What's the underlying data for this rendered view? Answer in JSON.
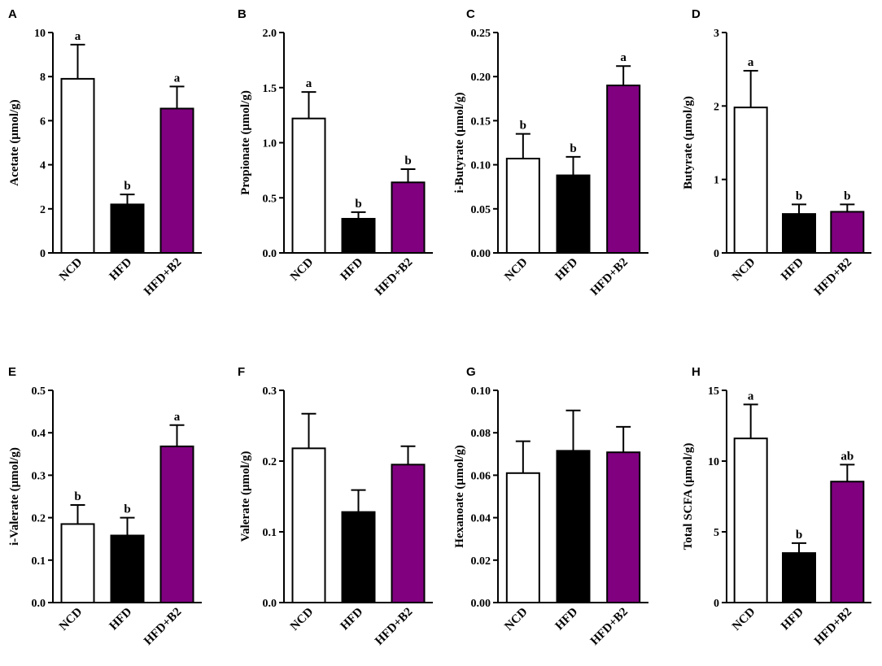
{
  "colors": {
    "NCD": "#ffffff",
    "HFD": "#000000",
    "HFD+B2": "#800080",
    "stroke": "#000000"
  },
  "chart_data": [
    {
      "panel": "A",
      "type": "bar",
      "categories": [
        "NCD",
        "HFD",
        "HFD+B2"
      ],
      "values": [
        7.9,
        2.2,
        6.55
      ],
      "errors": [
        1.55,
        0.45,
        1.0
      ],
      "significance": [
        "a",
        "b",
        "a"
      ],
      "ylabel": "Acetate (μmol/g)",
      "ylim": [
        0,
        10
      ],
      "yticks": [
        "0",
        "2",
        "4",
        "6",
        "8",
        "10"
      ]
    },
    {
      "panel": "B",
      "type": "bar",
      "categories": [
        "NCD",
        "HFD",
        "HFD+B2"
      ],
      "values": [
        1.22,
        0.31,
        0.64
      ],
      "errors": [
        0.24,
        0.06,
        0.12
      ],
      "significance": [
        "a",
        "b",
        "b"
      ],
      "ylabel": "Propionate (μmol/g)",
      "ylim": [
        0,
        2
      ],
      "yticks": [
        "0.0",
        "0.5",
        "1.0",
        "1.5",
        "2.0"
      ]
    },
    {
      "panel": "C",
      "type": "bar",
      "categories": [
        "NCD",
        "HFD",
        "HFD+B2"
      ],
      "values": [
        0.107,
        0.088,
        0.19
      ],
      "errors": [
        0.028,
        0.021,
        0.022
      ],
      "significance": [
        "b",
        "b",
        "a"
      ],
      "ylabel": "i-Butyrate (μmol/g)",
      "ylim": [
        0,
        0.25
      ],
      "yticks": [
        "0.00",
        "0.05",
        "0.10",
        "0.15",
        "0.20",
        "0.25"
      ]
    },
    {
      "panel": "D",
      "type": "bar",
      "categories": [
        "NCD",
        "HFD",
        "HFD+B2"
      ],
      "values": [
        1.98,
        0.53,
        0.56
      ],
      "errors": [
        0.5,
        0.13,
        0.1
      ],
      "significance": [
        "a",
        "b",
        "b"
      ],
      "ylabel": "Butyrate (μmol/g)",
      "ylim": [
        0,
        3
      ],
      "yticks": [
        "0",
        "1",
        "2",
        "3"
      ]
    },
    {
      "panel": "E",
      "type": "bar",
      "categories": [
        "NCD",
        "HFD",
        "HFD+B2"
      ],
      "values": [
        0.185,
        0.158,
        0.368
      ],
      "errors": [
        0.045,
        0.042,
        0.05
      ],
      "significance": [
        "b",
        "b",
        "a"
      ],
      "ylabel": "i-Valerate (μmol/g)",
      "ylim": [
        0,
        0.5
      ],
      "yticks": [
        "0.0",
        "0.1",
        "0.2",
        "0.3",
        "0.4",
        "0.5"
      ]
    },
    {
      "panel": "F",
      "type": "bar",
      "categories": [
        "NCD",
        "HFD",
        "HFD+B2"
      ],
      "values": [
        0.218,
        0.128,
        0.195
      ],
      "errors": [
        0.049,
        0.031,
        0.026
      ],
      "significance": [
        "",
        "",
        ""
      ],
      "ylabel": "Valerate (μmol/g)",
      "ylim": [
        0,
        0.3
      ],
      "yticks": [
        "0.0",
        "0.1",
        "0.2",
        "0.3"
      ]
    },
    {
      "panel": "G",
      "type": "bar",
      "categories": [
        "NCD",
        "HFD",
        "HFD+B2"
      ],
      "values": [
        0.061,
        0.0715,
        0.0708
      ],
      "errors": [
        0.015,
        0.019,
        0.012
      ],
      "significance": [
        "",
        "",
        ""
      ],
      "ylabel": "Hexanoate (μmol/g)",
      "ylim": [
        0,
        0.1
      ],
      "yticks": [
        "0.00",
        "0.02",
        "0.04",
        "0.06",
        "0.08",
        "0.10"
      ]
    },
    {
      "panel": "H",
      "type": "bar",
      "categories": [
        "NCD",
        "HFD",
        "HFD+B2"
      ],
      "values": [
        11.6,
        3.5,
        8.55
      ],
      "errors": [
        2.4,
        0.7,
        1.2
      ],
      "significance": [
        "a",
        "b",
        "ab"
      ],
      "ylabel": "Total SCFA (μmol/g)",
      "ylim": [
        0,
        15
      ],
      "yticks": [
        "0",
        "5",
        "10",
        "15"
      ]
    }
  ]
}
